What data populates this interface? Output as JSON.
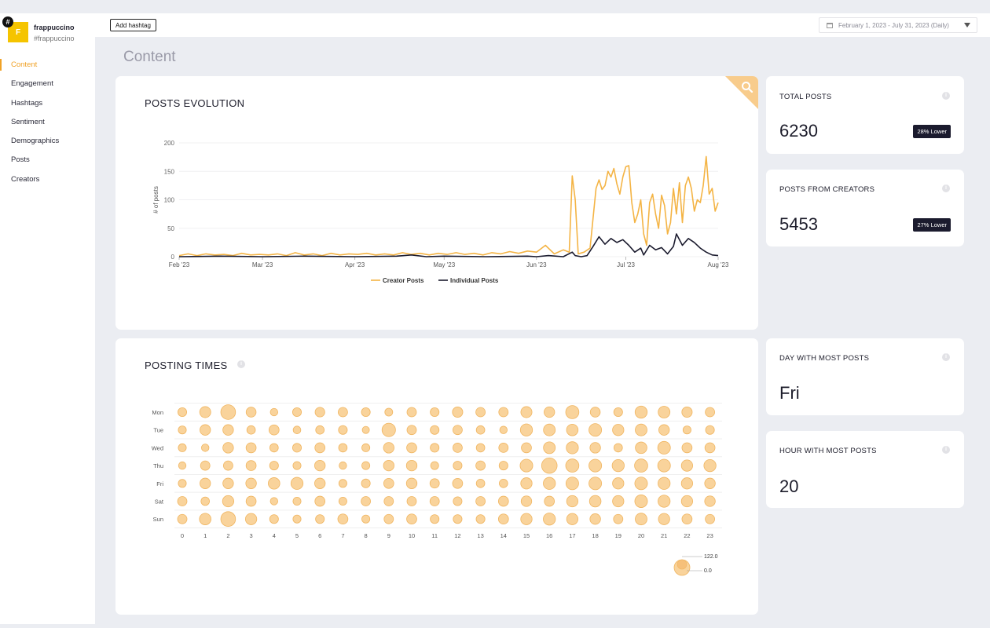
{
  "brand": {
    "logo_letter": "F",
    "hash_symbol": "#",
    "name": "frappuccino",
    "handle": "#frappuccino"
  },
  "nav": [
    {
      "label": "Content",
      "active": true
    },
    {
      "label": "Engagement",
      "active": false
    },
    {
      "label": "Hashtags",
      "active": false
    },
    {
      "label": "Sentiment",
      "active": false
    },
    {
      "label": "Demographics",
      "active": false
    },
    {
      "label": "Posts",
      "active": false
    },
    {
      "label": "Creators",
      "active": false
    }
  ],
  "topbar": {
    "add_hashtag_label": "Add hashtag",
    "date_range": "February 1, 2023 - July 31, 2023 (Daily)"
  },
  "page_title": "Content",
  "posts_evolution": {
    "title": "POSTS EVOLUTION"
  },
  "posting_times": {
    "title": "POSTING TIMES"
  },
  "stats": {
    "total_posts": {
      "label": "TOTAL POSTS",
      "value": "6230",
      "badge": "28% Lower"
    },
    "posts_from_creators": {
      "label": "POSTS FROM CREATORS",
      "value": "5453",
      "badge": "27% Lower"
    },
    "day_most_posts": {
      "label": "DAY WITH MOST POSTS",
      "value": "Fri"
    },
    "hour_most_posts": {
      "label": "HOUR WITH MOST POSTS",
      "value": "20"
    }
  },
  "colors": {
    "accent": "#f0a227",
    "creator_line": "#f4b445",
    "individual_line": "#1b1b2e",
    "bubble_fill": "#f9d39b",
    "bubble_stroke": "#f0b560"
  },
  "chart_data": [
    {
      "type": "line",
      "title": "POSTS EVOLUTION",
      "xlabel": "",
      "ylabel": "# of posts",
      "ylim": [
        0,
        200
      ],
      "yticks": [
        0,
        50,
        100,
        150,
        200
      ],
      "x_tick_labels": [
        "Feb '23",
        "Mar '23",
        "Apr '23",
        "May '23",
        "Jun '23",
        "Jul '23",
        "Aug '23"
      ],
      "x_tick_dates": [
        "2023-02-01",
        "2023-03-01",
        "2023-04-01",
        "2023-05-01",
        "2023-06-01",
        "2023-07-01",
        "2023-08-01"
      ],
      "grid": true,
      "legend": "bottom",
      "series": [
        {
          "name": "Creator Posts",
          "points": [
            [
              "2023-02-01",
              2
            ],
            [
              "2023-02-04",
              5
            ],
            [
              "2023-02-07",
              2
            ],
            [
              "2023-02-10",
              5
            ],
            [
              "2023-02-13",
              3
            ],
            [
              "2023-02-16",
              4
            ],
            [
              "2023-02-19",
              2
            ],
            [
              "2023-02-22",
              6
            ],
            [
              "2023-02-25",
              3
            ],
            [
              "2023-02-28",
              4
            ],
            [
              "2023-03-03",
              3
            ],
            [
              "2023-03-06",
              5
            ],
            [
              "2023-03-09",
              2
            ],
            [
              "2023-03-12",
              7
            ],
            [
              "2023-03-15",
              3
            ],
            [
              "2023-03-18",
              5
            ],
            [
              "2023-03-21",
              2
            ],
            [
              "2023-03-24",
              6
            ],
            [
              "2023-03-27",
              3
            ],
            [
              "2023-03-30",
              5
            ],
            [
              "2023-04-02",
              4
            ],
            [
              "2023-04-05",
              6
            ],
            [
              "2023-04-08",
              3
            ],
            [
              "2023-04-11",
              5
            ],
            [
              "2023-04-14",
              3
            ],
            [
              "2023-04-17",
              7
            ],
            [
              "2023-04-20",
              4
            ],
            [
              "2023-04-23",
              6
            ],
            [
              "2023-04-26",
              3
            ],
            [
              "2023-04-29",
              6
            ],
            [
              "2023-05-02",
              4
            ],
            [
              "2023-05-05",
              7
            ],
            [
              "2023-05-08",
              4
            ],
            [
              "2023-05-11",
              6
            ],
            [
              "2023-05-14",
              3
            ],
            [
              "2023-05-17",
              7
            ],
            [
              "2023-05-20",
              5
            ],
            [
              "2023-05-23",
              9
            ],
            [
              "2023-05-26",
              6
            ],
            [
              "2023-05-29",
              10
            ],
            [
              "2023-06-01",
              8
            ],
            [
              "2023-06-04",
              20
            ],
            [
              "2023-06-07",
              5
            ],
            [
              "2023-06-10",
              12
            ],
            [
              "2023-06-12",
              8
            ],
            [
              "2023-06-13",
              142
            ],
            [
              "2023-06-14",
              100
            ],
            [
              "2023-06-15",
              5
            ],
            [
              "2023-06-17",
              8
            ],
            [
              "2023-06-19",
              15
            ],
            [
              "2023-06-21",
              120
            ],
            [
              "2023-06-22",
              135
            ],
            [
              "2023-06-23",
              118
            ],
            [
              "2023-06-24",
              125
            ],
            [
              "2023-06-25",
              150
            ],
            [
              "2023-06-26",
              140
            ],
            [
              "2023-06-27",
              155
            ],
            [
              "2023-06-28",
              128
            ],
            [
              "2023-06-29",
              110
            ],
            [
              "2023-06-30",
              140
            ],
            [
              "2023-07-01",
              158
            ],
            [
              "2023-07-02",
              160
            ],
            [
              "2023-07-03",
              95
            ],
            [
              "2023-07-04",
              60
            ],
            [
              "2023-07-05",
              75
            ],
            [
              "2023-07-06",
              100
            ],
            [
              "2023-07-07",
              40
            ],
            [
              "2023-07-08",
              20
            ],
            [
              "2023-07-09",
              95
            ],
            [
              "2023-07-10",
              110
            ],
            [
              "2023-07-11",
              75
            ],
            [
              "2023-07-12",
              50
            ],
            [
              "2023-07-13",
              108
            ],
            [
              "2023-07-14",
              90
            ],
            [
              "2023-07-15",
              40
            ],
            [
              "2023-07-16",
              60
            ],
            [
              "2023-07-17",
              120
            ],
            [
              "2023-07-18",
              75
            ],
            [
              "2023-07-19",
              130
            ],
            [
              "2023-07-20",
              60
            ],
            [
              "2023-07-21",
              125
            ],
            [
              "2023-07-22",
              140
            ],
            [
              "2023-07-23",
              120
            ],
            [
              "2023-07-24",
              80
            ],
            [
              "2023-07-25",
              100
            ],
            [
              "2023-07-26",
              95
            ],
            [
              "2023-07-27",
              125
            ],
            [
              "2023-07-28",
              176
            ],
            [
              "2023-07-29",
              110
            ],
            [
              "2023-07-30",
              120
            ],
            [
              "2023-07-31",
              80
            ],
            [
              "2023-08-01",
              95
            ]
          ]
        },
        {
          "name": "Individual Posts",
          "points": [
            [
              "2023-02-01",
              0
            ],
            [
              "2023-02-15",
              1
            ],
            [
              "2023-03-01",
              0
            ],
            [
              "2023-03-15",
              1
            ],
            [
              "2023-04-01",
              0
            ],
            [
              "2023-04-15",
              1
            ],
            [
              "2023-04-20",
              3
            ],
            [
              "2023-04-25",
              0
            ],
            [
              "2023-05-01",
              1
            ],
            [
              "2023-05-15",
              0
            ],
            [
              "2023-05-29",
              1
            ],
            [
              "2023-06-01",
              0
            ],
            [
              "2023-06-05",
              2
            ],
            [
              "2023-06-10",
              0
            ],
            [
              "2023-06-13",
              8
            ],
            [
              "2023-06-14",
              2
            ],
            [
              "2023-06-16",
              0
            ],
            [
              "2023-06-18",
              2
            ],
            [
              "2023-06-20",
              18
            ],
            [
              "2023-06-22",
              35
            ],
            [
              "2023-06-24",
              22
            ],
            [
              "2023-06-26",
              32
            ],
            [
              "2023-06-28",
              25
            ],
            [
              "2023-06-30",
              30
            ],
            [
              "2023-07-02",
              20
            ],
            [
              "2023-07-04",
              8
            ],
            [
              "2023-07-06",
              15
            ],
            [
              "2023-07-07",
              3
            ],
            [
              "2023-07-09",
              20
            ],
            [
              "2023-07-11",
              12
            ],
            [
              "2023-07-13",
              16
            ],
            [
              "2023-07-15",
              5
            ],
            [
              "2023-07-17",
              18
            ],
            [
              "2023-07-18",
              40
            ],
            [
              "2023-07-20",
              20
            ],
            [
              "2023-07-22",
              32
            ],
            [
              "2023-07-24",
              25
            ],
            [
              "2023-07-26",
              15
            ],
            [
              "2023-07-28",
              8
            ],
            [
              "2023-07-30",
              3
            ],
            [
              "2023-08-01",
              2
            ]
          ]
        }
      ]
    },
    {
      "type": "scatter",
      "subtype": "bubble_grid",
      "title": "POSTING TIMES",
      "x_categories": [
        "0",
        "1",
        "2",
        "3",
        "4",
        "5",
        "6",
        "7",
        "8",
        "9",
        "10",
        "11",
        "12",
        "13",
        "14",
        "15",
        "16",
        "17",
        "18",
        "19",
        "20",
        "21",
        "22",
        "23"
      ],
      "y_categories": [
        "Mon",
        "Tue",
        "Wed",
        "Thu",
        "Fri",
        "Sat",
        "Sun"
      ],
      "size_legend": {
        "max_label": "122.0",
        "min_label": "0.0",
        "max": 122.0,
        "min": 0.0
      },
      "values": [
        [
          29,
          46,
          81,
          37,
          21,
          29,
          35,
          33,
          29,
          23,
          33,
          29,
          40,
          33,
          33,
          46,
          42,
          65,
          37,
          29,
          55,
          52,
          40,
          33
        ],
        [
          24,
          42,
          42,
          27,
          38,
          22,
          27,
          29,
          19,
          68,
          33,
          29,
          33,
          27,
          21,
          55,
          52,
          50,
          60,
          48,
          52,
          42,
          24,
          29
        ],
        [
          24,
          21,
          42,
          38,
          27,
          29,
          38,
          27,
          24,
          42,
          38,
          29,
          33,
          27,
          33,
          38,
          52,
          55,
          42,
          27,
          50,
          60,
          38,
          38
        ],
        [
          21,
          33,
          33,
          38,
          29,
          24,
          42,
          21,
          24,
          42,
          42,
          24,
          29,
          33,
          29,
          60,
          90,
          65,
          60,
          55,
          65,
          60,
          48,
          55
        ],
        [
          24,
          42,
          42,
          42,
          50,
          55,
          42,
          24,
          29,
          38,
          42,
          33,
          38,
          27,
          27,
          48,
          55,
          60,
          60,
          48,
          60,
          55,
          48,
          42
        ],
        [
          33,
          27,
          48,
          38,
          21,
          24,
          38,
          24,
          33,
          33,
          33,
          33,
          29,
          33,
          38,
          42,
          38,
          48,
          50,
          48,
          60,
          55,
          48,
          42
        ],
        [
          33,
          50,
          81,
          48,
          29,
          24,
          29,
          38,
          24,
          33,
          38,
          29,
          29,
          29,
          38,
          48,
          55,
          48,
          42,
          33,
          52,
          48,
          38,
          33
        ]
      ]
    }
  ]
}
